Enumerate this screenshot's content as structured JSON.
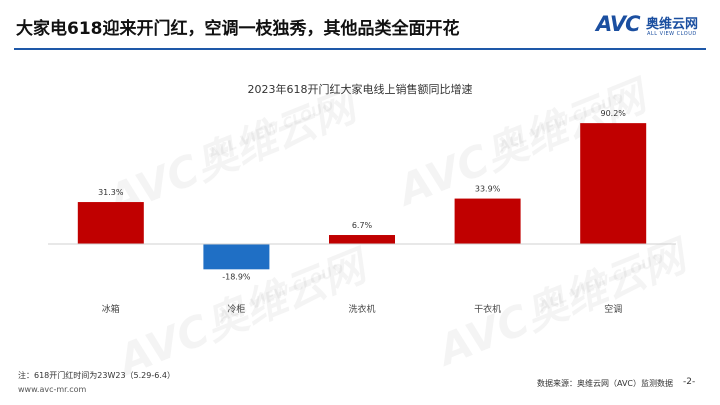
{
  "header": {
    "headline": "大家电618迎来开门红，空调一枝独秀，其他品类全面开花",
    "logo_mark": "AVC",
    "logo_cn": "奥维云网",
    "logo_en": "ALL VIEW CLOUD"
  },
  "watermark": {
    "mark": "AVC",
    "cn": "奥维云网",
    "en": "ALL VIEW CLOUD"
  },
  "chart_data": {
    "type": "bar",
    "title": "2023年618开门红大家电线上销售额同比增速",
    "categories": [
      "冰箱",
      "冷柜",
      "洗衣机",
      "干衣机",
      "空调"
    ],
    "values": [
      31.3,
      -18.9,
      6.7,
      33.9,
      90.2
    ],
    "labels": [
      "31.3%",
      "-18.9%",
      "6.7%",
      "33.9%",
      "90.2%"
    ],
    "ylim": [
      -25,
      100
    ],
    "grid": false,
    "colors": {
      "positive": "#c00000",
      "negative": "#1f6fc5"
    }
  },
  "footer": {
    "note": "注：618开门红时间为23W23（5.29-6.4）",
    "website": "www.avc-mr.com",
    "source": "数据来源：奥维云网（AVC）监测数据",
    "page": "-2-"
  }
}
